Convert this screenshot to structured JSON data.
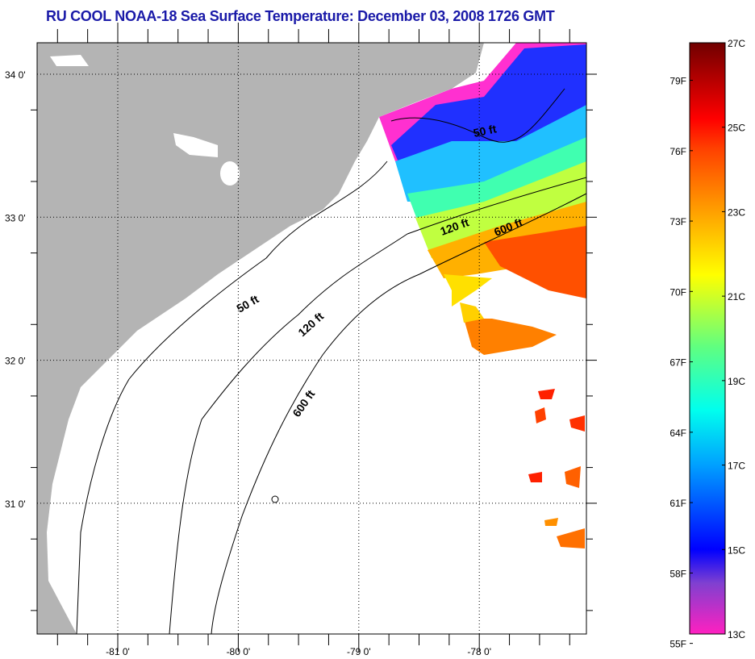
{
  "title": "RU COOL  NOAA-18  Sea Surface Temperature:  December 03, 2008 1726 GMT",
  "map": {
    "lat_labels": [
      {
        "lat": 34,
        "label": "34 0'"
      },
      {
        "lat": 33,
        "label": "33 0'"
      },
      {
        "lat": 32,
        "label": "32 0'"
      },
      {
        "lat": 31,
        "label": "31 0'"
      }
    ],
    "lon_labels": [
      {
        "lon": -81,
        "label": "-81 0'"
      },
      {
        "lon": -80,
        "label": "-80 0'"
      },
      {
        "lon": -79,
        "label": "-79 0'"
      },
      {
        "lon": -78,
        "label": "-78 0'"
      }
    ],
    "contour_labels": [
      "50 ft",
      "120 ft",
      "600 ft",
      "50 ft",
      "120 ft",
      "600 ft"
    ],
    "colors": {
      "land": "#b4b4b4",
      "frame": "#000000",
      "title": "#1a1aa8"
    }
  },
  "colorbar": {
    "c_range": [
      13,
      27
    ],
    "celsius_labels": [
      "13C",
      "15C",
      "17C",
      "19C",
      "21C",
      "23C",
      "25C",
      "27C"
    ],
    "fahrenheit_labels": [
      "55F",
      "58F",
      "61F",
      "64F",
      "67F",
      "70F",
      "73F",
      "76F",
      "79F"
    ],
    "stops": [
      {
        "c": 13,
        "color": "#ff20c0"
      },
      {
        "c": 14.2,
        "color": "#8040d0"
      },
      {
        "c": 15,
        "color": "#0000ff"
      },
      {
        "c": 17,
        "color": "#00a0ff"
      },
      {
        "c": 18.3,
        "color": "#00ffee"
      },
      {
        "c": 19.8,
        "color": "#60ff80"
      },
      {
        "c": 21.5,
        "color": "#ffff00"
      },
      {
        "c": 23,
        "color": "#ffa000"
      },
      {
        "c": 24.5,
        "color": "#ff4000"
      },
      {
        "c": 25.2,
        "color": "#ff0000"
      },
      {
        "c": 27,
        "color": "#700000"
      }
    ]
  }
}
